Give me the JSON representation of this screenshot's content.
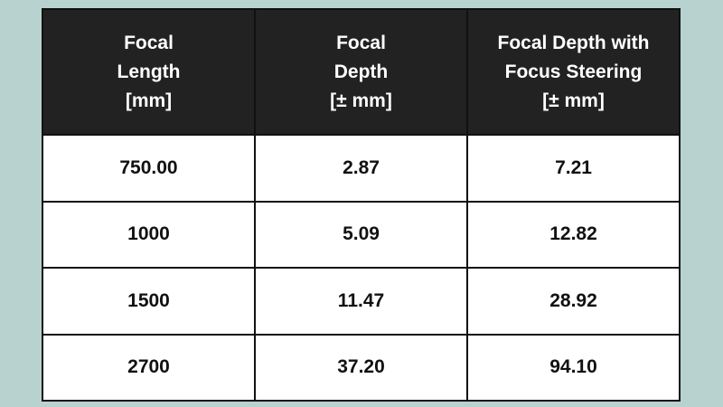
{
  "table": {
    "header": [
      [
        "Focal",
        "Length",
        "[mm]"
      ],
      [
        "Focal",
        "Depth",
        "[± mm]"
      ],
      [
        "Focal Depth with",
        "Focus Steering",
        "[± mm]"
      ]
    ],
    "rows": [
      [
        "750.00",
        "2.87",
        "7.21"
      ],
      [
        "1000",
        "5.09",
        "12.82"
      ],
      [
        "1500",
        "11.47",
        "28.92"
      ],
      [
        "2700",
        "37.20",
        "94.10"
      ]
    ]
  }
}
